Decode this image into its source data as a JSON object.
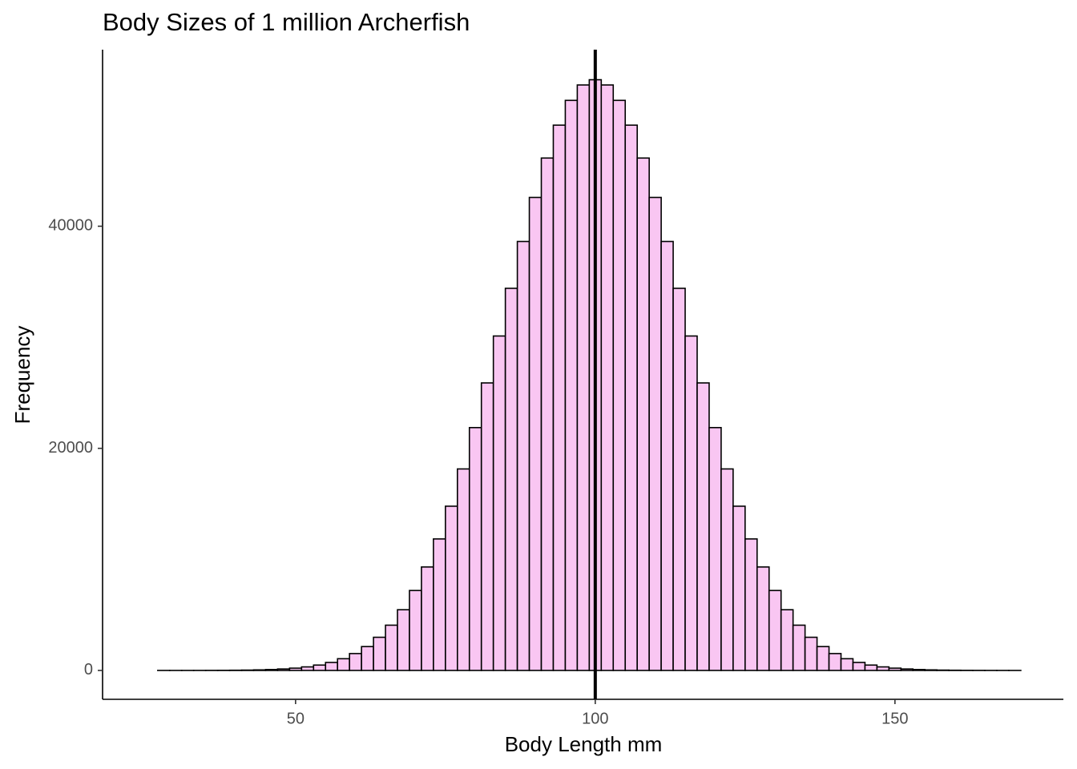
{
  "chart_data": {
    "type": "histogram",
    "title": "Body Sizes of 1 million Archerfish",
    "xlabel": "Body Length mm",
    "ylabel": "Frequency",
    "bins": [
      25,
      27,
      29,
      31,
      33,
      35,
      37,
      39,
      41,
      43,
      45,
      47,
      49,
      51,
      53,
      55,
      57,
      59,
      61,
      63,
      65,
      67,
      69,
      71,
      73,
      75,
      77,
      79,
      81,
      83,
      85,
      87,
      89,
      91,
      93,
      95,
      97,
      99,
      101,
      103,
      105,
      107,
      109,
      111,
      113,
      115,
      117,
      119,
      121,
      123,
      125,
      127,
      129,
      131,
      133,
      135,
      137,
      139,
      141,
      143,
      145,
      147,
      149,
      151,
      153,
      155,
      157,
      159,
      161,
      163,
      165,
      167,
      169,
      171
    ],
    "counts": [
      0,
      1,
      1,
      2,
      3,
      6,
      10,
      18,
      30,
      50,
      82,
      131,
      206,
      318,
      483,
      720,
      1055,
      1520,
      2149,
      2986,
      4075,
      5466,
      7199,
      9317,
      11842,
      14790,
      18144,
      21868,
      25891,
      30115,
      34411,
      38626,
      42593,
      46141,
      49103,
      51334,
      52721,
      53192,
      52721,
      51334,
      49103,
      46141,
      42593,
      38626,
      34411,
      30115,
      25891,
      21868,
      18144,
      14790,
      11842,
      9317,
      7199,
      5466,
      4075,
      2986,
      2149,
      1520,
      1055,
      720,
      483,
      318,
      206,
      131,
      82,
      50,
      30,
      18,
      10,
      6,
      3,
      2,
      1,
      1
    ],
    "color": "#f9c6f2",
    "edgecolor": "#000000",
    "vline": 100,
    "xlim": [
      17.8,
      178.1
    ],
    "xticks": [
      50,
      100,
      150
    ],
    "ylim": [
      -2600,
      55900
    ],
    "yticks": [
      0,
      20000,
      40000
    ],
    "grid": false
  }
}
